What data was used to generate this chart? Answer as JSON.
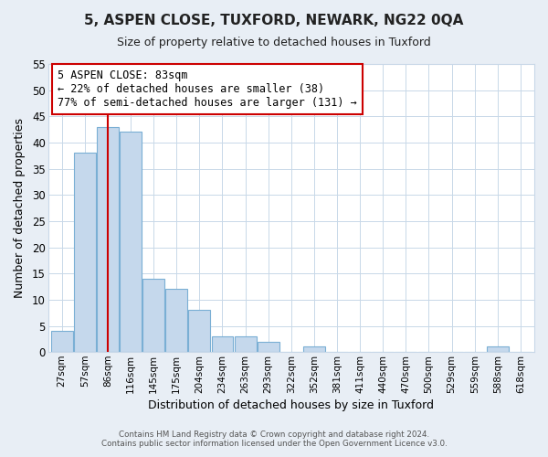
{
  "title": "5, ASPEN CLOSE, TUXFORD, NEWARK, NG22 0QA",
  "subtitle": "Size of property relative to detached houses in Tuxford",
  "xlabel": "Distribution of detached houses by size in Tuxford",
  "ylabel": "Number of detached properties",
  "bar_color": "#c5d8ec",
  "bar_edge_color": "#7aafd4",
  "categories": [
    "27sqm",
    "57sqm",
    "86sqm",
    "116sqm",
    "145sqm",
    "175sqm",
    "204sqm",
    "234sqm",
    "263sqm",
    "293sqm",
    "322sqm",
    "352sqm",
    "381sqm",
    "411sqm",
    "440sqm",
    "470sqm",
    "500sqm",
    "529sqm",
    "559sqm",
    "588sqm",
    "618sqm"
  ],
  "values": [
    4,
    38,
    43,
    42,
    14,
    12,
    8,
    3,
    3,
    2,
    0,
    1,
    0,
    0,
    0,
    0,
    0,
    0,
    0,
    1,
    0
  ],
  "ylim": [
    0,
    55
  ],
  "yticks": [
    0,
    5,
    10,
    15,
    20,
    25,
    30,
    35,
    40,
    45,
    50,
    55
  ],
  "property_line_x": 2.0,
  "property_line_color": "#cc0000",
  "annotation_title": "5 ASPEN CLOSE: 83sqm",
  "annotation_line1": "← 22% of detached houses are smaller (38)",
  "annotation_line2": "77% of semi-detached houses are larger (131) →",
  "annotation_box_color": "#ffffff",
  "annotation_box_edge_color": "#cc0000",
  "footer_line1": "Contains HM Land Registry data © Crown copyright and database right 2024.",
  "footer_line2": "Contains public sector information licensed under the Open Government Licence v3.0.",
  "background_color": "#e8eef5",
  "plot_background_color": "#ffffff",
  "grid_color": "#c8d8e8"
}
